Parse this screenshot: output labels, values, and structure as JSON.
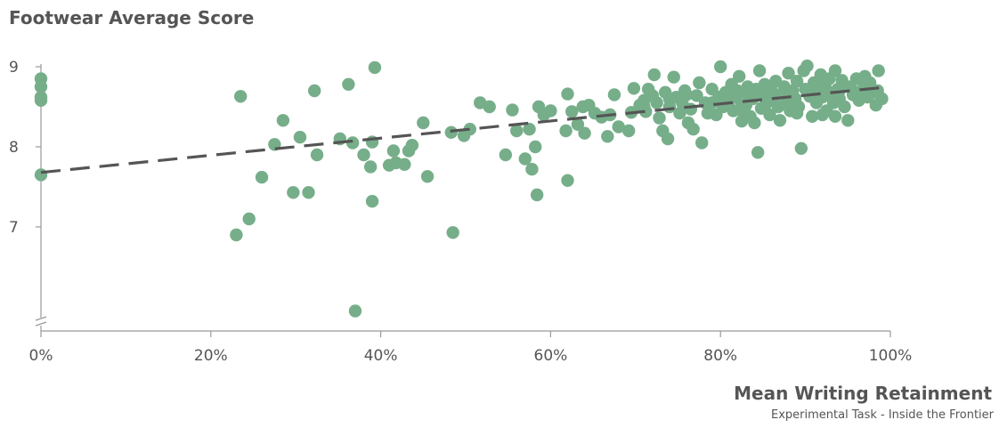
{
  "chart_data": {
    "type": "scatter",
    "title": "Footwear Average Score",
    "xlabel": "Mean Writing Retainment",
    "xlabel_sub": "Experimental Task - Inside the Frontier",
    "ylabel": "",
    "xlim": [
      0,
      1
    ],
    "ylim": [
      5.7,
      9.3
    ],
    "x_ticks": [
      0,
      0.2,
      0.4,
      0.6,
      0.8,
      1.0
    ],
    "x_tick_labels": [
      "0%",
      "20%",
      "40%",
      "60%",
      "80%",
      "100%"
    ],
    "y_ticks": [
      7,
      8,
      9
    ],
    "y_tick_labels": [
      "7",
      "8",
      "9"
    ],
    "axis_break": true,
    "grid": false,
    "point_color": "#76ae8a",
    "trend_color": "#555555",
    "trendline": {
      "x": [
        0,
        0.99
      ],
      "y": [
        7.68,
        8.74
      ]
    },
    "points": [
      [
        0.0,
        8.85
      ],
      [
        0.0,
        8.75
      ],
      [
        0.0,
        8.62
      ],
      [
        0.0,
        8.58
      ],
      [
        0.0,
        7.65
      ],
      [
        0.235,
        8.63
      ],
      [
        0.23,
        6.9
      ],
      [
        0.245,
        7.1
      ],
      [
        0.26,
        7.62
      ],
      [
        0.275,
        8.03
      ],
      [
        0.285,
        8.33
      ],
      [
        0.297,
        7.43
      ],
      [
        0.305,
        8.12
      ],
      [
        0.315,
        7.43
      ],
      [
        0.322,
        8.7
      ],
      [
        0.325,
        7.9
      ],
      [
        0.352,
        8.1
      ],
      [
        0.362,
        8.78
      ],
      [
        0.367,
        8.05
      ],
      [
        0.37,
        5.95
      ],
      [
        0.38,
        7.9
      ],
      [
        0.388,
        7.75
      ],
      [
        0.39,
        8.06
      ],
      [
        0.39,
        7.32
      ],
      [
        0.393,
        8.99
      ],
      [
        0.41,
        7.77
      ],
      [
        0.415,
        7.95
      ],
      [
        0.418,
        7.8
      ],
      [
        0.428,
        7.78
      ],
      [
        0.433,
        7.95
      ],
      [
        0.437,
        8.02
      ],
      [
        0.45,
        8.3
      ],
      [
        0.455,
        7.63
      ],
      [
        0.483,
        8.18
      ],
      [
        0.485,
        6.93
      ],
      [
        0.498,
        8.14
      ],
      [
        0.505,
        8.22
      ],
      [
        0.517,
        8.55
      ],
      [
        0.528,
        8.5
      ],
      [
        0.547,
        7.9
      ],
      [
        0.555,
        8.46
      ],
      [
        0.56,
        8.2
      ],
      [
        0.57,
        7.85
      ],
      [
        0.575,
        8.22
      ],
      [
        0.578,
        7.72
      ],
      [
        0.582,
        8.0
      ],
      [
        0.584,
        7.4
      ],
      [
        0.586,
        8.5
      ],
      [
        0.592,
        8.4
      ],
      [
        0.6,
        8.45
      ],
      [
        0.618,
        8.2
      ],
      [
        0.62,
        7.58
      ],
      [
        0.62,
        8.66
      ],
      [
        0.625,
        8.44
      ],
      [
        0.632,
        8.28
      ],
      [
        0.638,
        8.5
      ],
      [
        0.64,
        8.17
      ],
      [
        0.645,
        8.52
      ],
      [
        0.652,
        8.42
      ],
      [
        0.66,
        8.37
      ],
      [
        0.667,
        8.13
      ],
      [
        0.67,
        8.4
      ],
      [
        0.675,
        8.65
      ],
      [
        0.68,
        8.25
      ],
      [
        0.692,
        8.2
      ],
      [
        0.695,
        8.43
      ],
      [
        0.698,
        8.73
      ],
      [
        0.705,
        8.52
      ],
      [
        0.71,
        8.58
      ],
      [
        0.712,
        8.44
      ],
      [
        0.715,
        8.72
      ],
      [
        0.72,
        8.64
      ],
      [
        0.722,
        8.9
      ],
      [
        0.725,
        8.55
      ],
      [
        0.728,
        8.36
      ],
      [
        0.732,
        8.2
      ],
      [
        0.735,
        8.68
      ],
      [
        0.738,
        8.1
      ],
      [
        0.74,
        8.5
      ],
      [
        0.745,
        8.87
      ],
      [
        0.748,
        8.62
      ],
      [
        0.752,
        8.42
      ],
      [
        0.755,
        8.55
      ],
      [
        0.758,
        8.7
      ],
      [
        0.762,
        8.3
      ],
      [
        0.765,
        8.47
      ],
      [
        0.768,
        8.22
      ],
      [
        0.772,
        8.64
      ],
      [
        0.775,
        8.8
      ],
      [
        0.778,
        8.05
      ],
      [
        0.782,
        8.55
      ],
      [
        0.785,
        8.42
      ],
      [
        0.79,
        8.72
      ],
      [
        0.795,
        8.4
      ],
      [
        0.798,
        8.62
      ],
      [
        0.8,
        9.0
      ],
      [
        0.803,
        8.5
      ],
      [
        0.806,
        8.68
      ],
      [
        0.81,
        8.57
      ],
      [
        0.813,
        8.78
      ],
      [
        0.815,
        8.45
      ],
      [
        0.818,
        8.62
      ],
      [
        0.82,
        8.7
      ],
      [
        0.822,
        8.88
      ],
      [
        0.825,
        8.52
      ],
      [
        0.828,
        8.4
      ],
      [
        0.83,
        8.67
      ],
      [
        0.832,
        8.75
      ],
      [
        0.835,
        8.38
      ],
      [
        0.838,
        8.6
      ],
      [
        0.84,
        8.3
      ],
      [
        0.842,
        8.72
      ],
      [
        0.844,
        7.93
      ],
      [
        0.846,
        8.95
      ],
      [
        0.848,
        8.48
      ],
      [
        0.85,
        8.63
      ],
      [
        0.852,
        8.78
      ],
      [
        0.855,
        8.55
      ],
      [
        0.858,
        8.4
      ],
      [
        0.86,
        8.7
      ],
      [
        0.863,
        8.6
      ],
      [
        0.865,
        8.82
      ],
      [
        0.868,
        8.5
      ],
      [
        0.87,
        8.33
      ],
      [
        0.872,
        8.66
      ],
      [
        0.875,
        8.75
      ],
      [
        0.878,
        8.55
      ],
      [
        0.88,
        8.92
      ],
      [
        0.882,
        8.45
      ],
      [
        0.885,
        8.7
      ],
      [
        0.888,
        8.6
      ],
      [
        0.89,
        8.82
      ],
      [
        0.892,
        8.5
      ],
      [
        0.895,
        7.98
      ],
      [
        0.898,
        8.95
      ],
      [
        0.9,
        8.72
      ],
      [
        0.902,
        9.01
      ],
      [
        0.905,
        8.63
      ],
      [
        0.908,
        8.38
      ],
      [
        0.91,
        8.8
      ],
      [
        0.913,
        8.55
      ],
      [
        0.915,
        8.7
      ],
      [
        0.918,
        8.9
      ],
      [
        0.92,
        8.62
      ],
      [
        0.923,
        8.78
      ],
      [
        0.925,
        8.45
      ],
      [
        0.928,
        8.85
      ],
      [
        0.93,
        8.68
      ],
      [
        0.933,
        8.55
      ],
      [
        0.935,
        8.95
      ],
      [
        0.938,
        8.72
      ],
      [
        0.94,
        8.6
      ],
      [
        0.943,
        8.83
      ],
      [
        0.946,
        8.5
      ],
      [
        0.95,
        8.33
      ],
      [
        0.953,
        8.75
      ],
      [
        0.956,
        8.65
      ],
      [
        0.96,
        8.85
      ],
      [
        0.963,
        8.58
      ],
      [
        0.966,
        8.7
      ],
      [
        0.97,
        8.88
      ],
      [
        0.973,
        8.62
      ],
      [
        0.976,
        8.8
      ],
      [
        0.98,
        8.68
      ],
      [
        0.983,
        8.52
      ],
      [
        0.986,
        8.95
      ],
      [
        0.99,
        8.6
      ],
      [
        0.74,
        8.6
      ],
      [
        0.71,
        8.5
      ],
      [
        0.76,
        8.65
      ],
      [
        0.79,
        8.55
      ],
      [
        0.81,
        8.65
      ],
      [
        0.83,
        8.52
      ],
      [
        0.86,
        8.62
      ],
      [
        0.88,
        8.65
      ],
      [
        0.91,
        8.68
      ],
      [
        0.94,
        8.7
      ],
      [
        0.97,
        8.75
      ],
      [
        0.985,
        8.7
      ],
      [
        0.825,
        8.32
      ],
      [
        0.89,
        8.42
      ],
      [
        0.92,
        8.4
      ],
      [
        0.935,
        8.38
      ]
    ]
  }
}
